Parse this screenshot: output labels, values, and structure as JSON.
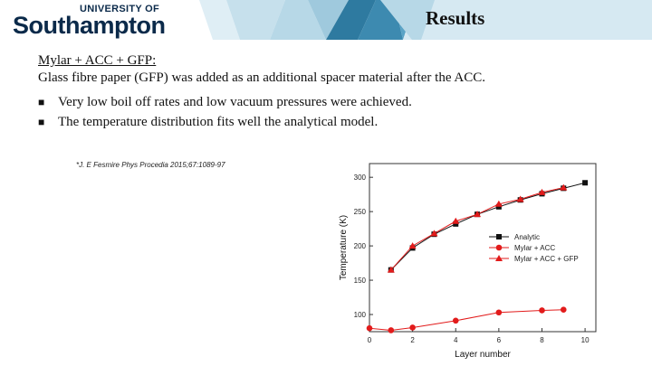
{
  "header": {
    "logo_top": "UNIVERSITY OF",
    "logo_main": "Southampton",
    "title": "Results"
  },
  "main": {
    "heading": "Mylar + ACC + GFP:",
    "description": "Glass fibre paper (GFP) was added as an additional spacer material after the ACC.",
    "bullets": [
      "Very low boil off rates and low vacuum pressures were achieved.",
      "The temperature distribution fits well the analytical model."
    ],
    "reference": "*J. E Fesmire Phys Procedia 2015;67:1089-97"
  },
  "colors": {
    "navy": "#0b2a4a",
    "teal": "#2e7aa0",
    "light_teal": "#9fc9dd",
    "red": "#e21b1b",
    "black": "#111111"
  },
  "chart_data": {
    "type": "line",
    "xlabel": "Layer number",
    "ylabel": "Temperature (K)",
    "xlim": [
      0,
      10.5
    ],
    "ylim": [
      75,
      320
    ],
    "xticks": [
      0,
      2,
      4,
      6,
      8,
      10
    ],
    "yticks": [
      100,
      150,
      200,
      250,
      300
    ],
    "legend_position": "center-right",
    "series": [
      {
        "name": "Analytic",
        "marker": "square",
        "color": "#111111",
        "x": [
          1,
          2,
          3,
          4,
          5,
          6,
          7,
          8,
          9,
          10
        ],
        "y": [
          165,
          197,
          217,
          232,
          246,
          257,
          267,
          276,
          284,
          292
        ]
      },
      {
        "name": "Mylar + ACC",
        "marker": "circle",
        "color": "#e21b1b",
        "x": [
          0,
          1,
          2,
          4,
          6,
          8,
          9
        ],
        "y": [
          80,
          77,
          81,
          91,
          103,
          106,
          107
        ]
      },
      {
        "name": "Mylar + ACC + GFP",
        "marker": "triangle",
        "color": "#e21b1b",
        "x": [
          1,
          2,
          3,
          4,
          5,
          6,
          7,
          8,
          9
        ],
        "y": [
          165,
          200,
          218,
          236,
          246,
          261,
          268,
          278,
          285
        ]
      }
    ]
  }
}
